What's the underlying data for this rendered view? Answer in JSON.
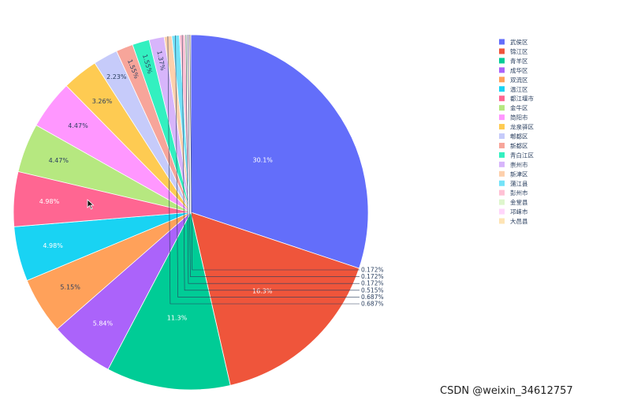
{
  "chart_data": {
    "type": "pie",
    "slices": [
      {
        "label": "武侯区",
        "value": 30.1,
        "text": "30.1%",
        "color": "#636efa"
      },
      {
        "label": "锦江区",
        "value": 16.3,
        "text": "16.3%",
        "color": "#ef553b"
      },
      {
        "label": "青羊区",
        "value": 11.3,
        "text": "11.3%",
        "color": "#00cc96"
      },
      {
        "label": "成华区",
        "value": 5.84,
        "text": "5.84%",
        "color": "#ab63fa"
      },
      {
        "label": "双流区",
        "value": 5.15,
        "text": "5.15%",
        "color": "#ffa15a"
      },
      {
        "label": "温江区",
        "value": 4.98,
        "text": "4.98%",
        "color": "#19d3f3"
      },
      {
        "label": "都江堰市",
        "value": 4.98,
        "text": "4.98%",
        "color": "#ff6692"
      },
      {
        "label": "金牛区",
        "value": 4.47,
        "text": "4.47%",
        "color": "#b6e880"
      },
      {
        "label": "简阳市",
        "value": 4.47,
        "text": "4.47%",
        "color": "#ff97ff"
      },
      {
        "label": "龙泉驿区",
        "value": 3.26,
        "text": "3.26%",
        "color": "#fecb52"
      },
      {
        "label": "郫都区",
        "value": 2.23,
        "text": "2.23%",
        "color": "#c6cbfa"
      },
      {
        "label": "新都区",
        "value": 1.55,
        "text": "1.55%",
        "color": "#f7a59a"
      },
      {
        "label": "青白江区",
        "value": 1.55,
        "text": "1.55%",
        "color": "#33f0c0"
      },
      {
        "label": "崇州市",
        "value": 1.37,
        "text": "1.37%",
        "color": "#d7b5fb"
      },
      {
        "label": "新津区",
        "value": 0.687,
        "text": "0.687%",
        "color": "#fdd0ac"
      },
      {
        "label": "蒲江县",
        "value": 0.687,
        "text": "0.687%",
        "color": "#74e3f8"
      },
      {
        "label": "彭州市",
        "value": 0.515,
        "text": "0.515%",
        "color": "#ffc2d5"
      },
      {
        "label": "金堂县",
        "value": 0.172,
        "text": "0.172%",
        "color": "#def6cd"
      },
      {
        "label": "邛崃市",
        "value": 0.172,
        "text": "0.172%",
        "color": "#ffd6fb"
      },
      {
        "label": "大邑县",
        "value": 0.172,
        "text": "0.172%",
        "color": "#fee4b5"
      }
    ],
    "legend_position": "top-right"
  },
  "watermark": "CSDN @weixin_34612757"
}
